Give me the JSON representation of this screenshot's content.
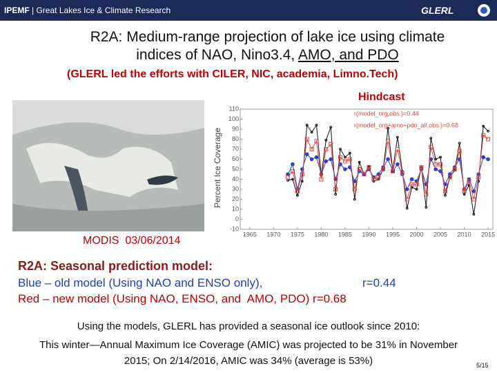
{
  "header": {
    "brand": "IPEMF",
    "subtitle": "| Great Lakes Ice & Climate Research",
    "logo": "GLERL"
  },
  "title": {
    "line1": "R2A: Medium-range projection of lake ice using climate",
    "line2a": "indices of NAO, Nino3.4, ",
    "line2b": "AMO, and PDO"
  },
  "subtitle": "(GLERL led the efforts with CILER, NIC, academia, Limno.Tech)",
  "image_caption": "MODIS  03/06/2014",
  "chart_data": {
    "type": "line",
    "title": "Hindcast",
    "y_label": "Percent Ice Coverage",
    "x": [
      1973,
      1974,
      1975,
      1976,
      1977,
      1978,
      1979,
      1980,
      1981,
      1982,
      1983,
      1984,
      1985,
      1986,
      1987,
      1988,
      1989,
      1990,
      1991,
      1992,
      1993,
      1994,
      1995,
      1996,
      1997,
      1998,
      1999,
      2000,
      2001,
      2002,
      2003,
      2004,
      2005,
      2006,
      2007,
      2008,
      2009,
      2010,
      2011,
      2012,
      2013,
      2014,
      2015
    ],
    "series": [
      {
        "color": "#111111",
        "marker": "dot",
        "values": [
          39,
          40,
          24,
          38,
          94,
          87,
          94,
          44,
          79,
          92,
          25,
          70,
          62,
          66,
          20,
          57,
          45,
          53,
          38,
          40,
          50,
          91,
          49,
          82,
          48,
          11,
          32,
          30,
          52,
          12,
          81,
          60,
          62,
          24,
          42,
          49,
          76,
          25,
          34,
          5,
          38,
          93,
          88
        ]
      },
      {
        "name": "r(model_org,obs.)=0.44",
        "color": "#2a3fd0",
        "marker": "circle",
        "values": [
          45,
          55,
          30,
          50,
          65,
          60,
          62,
          45,
          58,
          60,
          40,
          55,
          50,
          52,
          38,
          48,
          45,
          50,
          42,
          45,
          52,
          60,
          48,
          55,
          45,
          30,
          40,
          38,
          50,
          35,
          60,
          50,
          48,
          35,
          45,
          52,
          60,
          30,
          40,
          28,
          45,
          62,
          60
        ]
      },
      {
        "name": "r(model_org+amo+pdo_all,obs.)=0.68",
        "color": "#e0463c",
        "marker": "square",
        "values": [
          42,
          48,
          28,
          45,
          80,
          70,
          78,
          40,
          70,
          75,
          30,
          62,
          58,
          60,
          30,
          50,
          45,
          52,
          40,
          42,
          50,
          78,
          48,
          70,
          46,
          20,
          35,
          35,
          52,
          25,
          72,
          55,
          55,
          28,
          42,
          50,
          68,
          28,
          38,
          20,
          42,
          84,
          80
        ]
      }
    ],
    "legend_text_color": "#e0463c",
    "xlim": [
      1963,
      2016
    ],
    "xticks": [
      1965,
      1970,
      1975,
      1980,
      1985,
      1990,
      1995,
      2000,
      2005,
      2010,
      2015
    ],
    "ylim": [
      -10,
      110
    ],
    "yticks": [
      -10,
      0,
      10,
      20,
      30,
      40,
      50,
      60,
      70,
      80,
      90,
      100,
      110
    ]
  },
  "section": {
    "heading": "R2A: Seasonal prediction model:",
    "blue": "Blue – old model (Using NAO and ENSO only),",
    "blue_r": "r=0.44",
    "red": "Red – new model (Using NAO, ENSO, and  AMO, PDO) r=0.68"
  },
  "footer": {
    "line1": "Using the models, GLERL has provided a seasonal ice outlook since 2010:",
    "line2": "This winter—Annual Maximum Ice Coverage (AMIC) was projected to be 31% in November",
    "line3": "2015; On 2/14/2016, AMIC was 34% (average is 53%)"
  },
  "page_number": "5/15"
}
